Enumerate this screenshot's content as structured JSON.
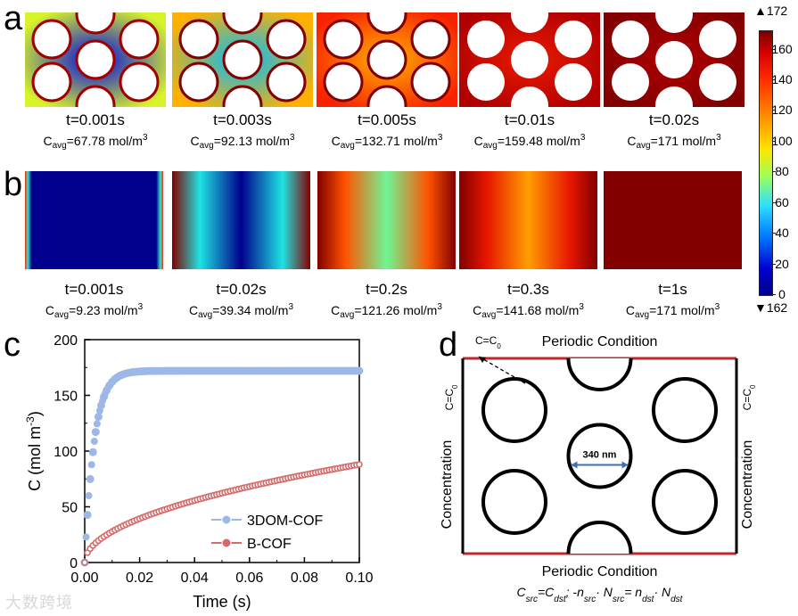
{
  "panels": {
    "a": {
      "letter": "a"
    },
    "b": {
      "letter": "b"
    },
    "c": {
      "letter": "c"
    },
    "d": {
      "letter": "d"
    }
  },
  "row_a": [
    {
      "t": "t=0.001s",
      "c_val": "=67.78 mol/m",
      "level": 0.39
    },
    {
      "t": "t=0.003s",
      "c_val": "=92.13 mol/m",
      "level": 0.54
    },
    {
      "t": "t=0.005s",
      "c_val": "=132.71 mol/m",
      "level": 0.78
    },
    {
      "t": "t=0.01s",
      "c_val": "=159.48 mol/m",
      "level": 0.93
    },
    {
      "t": "t=0.02s",
      "c_val": "=171 mol/m",
      "level": 1.0
    }
  ],
  "row_b": [
    {
      "t": "t=0.001s",
      "c_val": "=9.23 mol/m",
      "level": 0.05
    },
    {
      "t": "t=0.02s",
      "c_val": "=39.34 mol/m",
      "level": 0.23
    },
    {
      "t": "t=0.2s",
      "c_val": "=121.26 mol/m",
      "level": 0.71
    },
    {
      "t": "t=0.3s",
      "c_val": "=141.68 mol/m",
      "level": 0.83
    },
    {
      "t": "t=1s",
      "c_val": "=171 mol/m",
      "level": 1.0
    }
  ],
  "cavg": {
    "base": "C",
    "sub": "avg",
    "sup": "3"
  },
  "colorbar": {
    "max_label": "▲172",
    "min_label": "▼162",
    "ticks": [
      "160",
      "140",
      "120",
      "100",
      "80",
      "60",
      "40",
      "20",
      "0"
    ],
    "tick_values": [
      160,
      140,
      120,
      100,
      80,
      60,
      40,
      20,
      0
    ],
    "range": [
      0,
      172
    ]
  },
  "chart_data": {
    "type": "scatter",
    "xlabel": "Time (s)",
    "ylabel": "C (mol m",
    "ylabel_sup": "-3",
    "ylabel_close": ")",
    "xlim": [
      0,
      0.1
    ],
    "ylim": [
      0,
      200
    ],
    "xticks": [
      0.0,
      0.02,
      0.04,
      0.06,
      0.08,
      0.1
    ],
    "xtick_labels": [
      "0.00",
      "0.02",
      "0.04",
      "0.06",
      "0.08",
      "0.10"
    ],
    "yticks": [
      0,
      50,
      100,
      150,
      200
    ],
    "ytick_labels": [
      "0",
      "50",
      "100",
      "150",
      "200"
    ],
    "series": [
      {
        "name": "3DOM-COF",
        "color": "#9db8e6",
        "model": "saturating",
        "cmax": 172,
        "tau": 0.0035
      },
      {
        "name": "B-COF",
        "color": "#d46a6a",
        "model": "sqrt",
        "value_at_0.1": 88
      }
    ],
    "legend_position": "bottom-right"
  },
  "diagram": {
    "top_title": "Periodic Condition",
    "bottom_title": "Periodic Condition",
    "corner_label": "C=C",
    "corner_sub": "0",
    "left_bc": "C=C",
    "left_bc_sub": "0",
    "right_bc": "C=C",
    "right_bc_sub": "0",
    "left_side": "Concentration",
    "right_side": "Concentration",
    "pore_size": "340 nm",
    "boundary_eq": "C",
    "boundary_eq_src": "src",
    "boundary_eq_mid": "=C",
    "boundary_eq_dst": "dst",
    "flux_a": ";      -n",
    "flux_b": "· N",
    "flux_c": "= n",
    "flux_d": "· N",
    "edge_color": "#c0282d"
  },
  "watermark": "大数跨境"
}
